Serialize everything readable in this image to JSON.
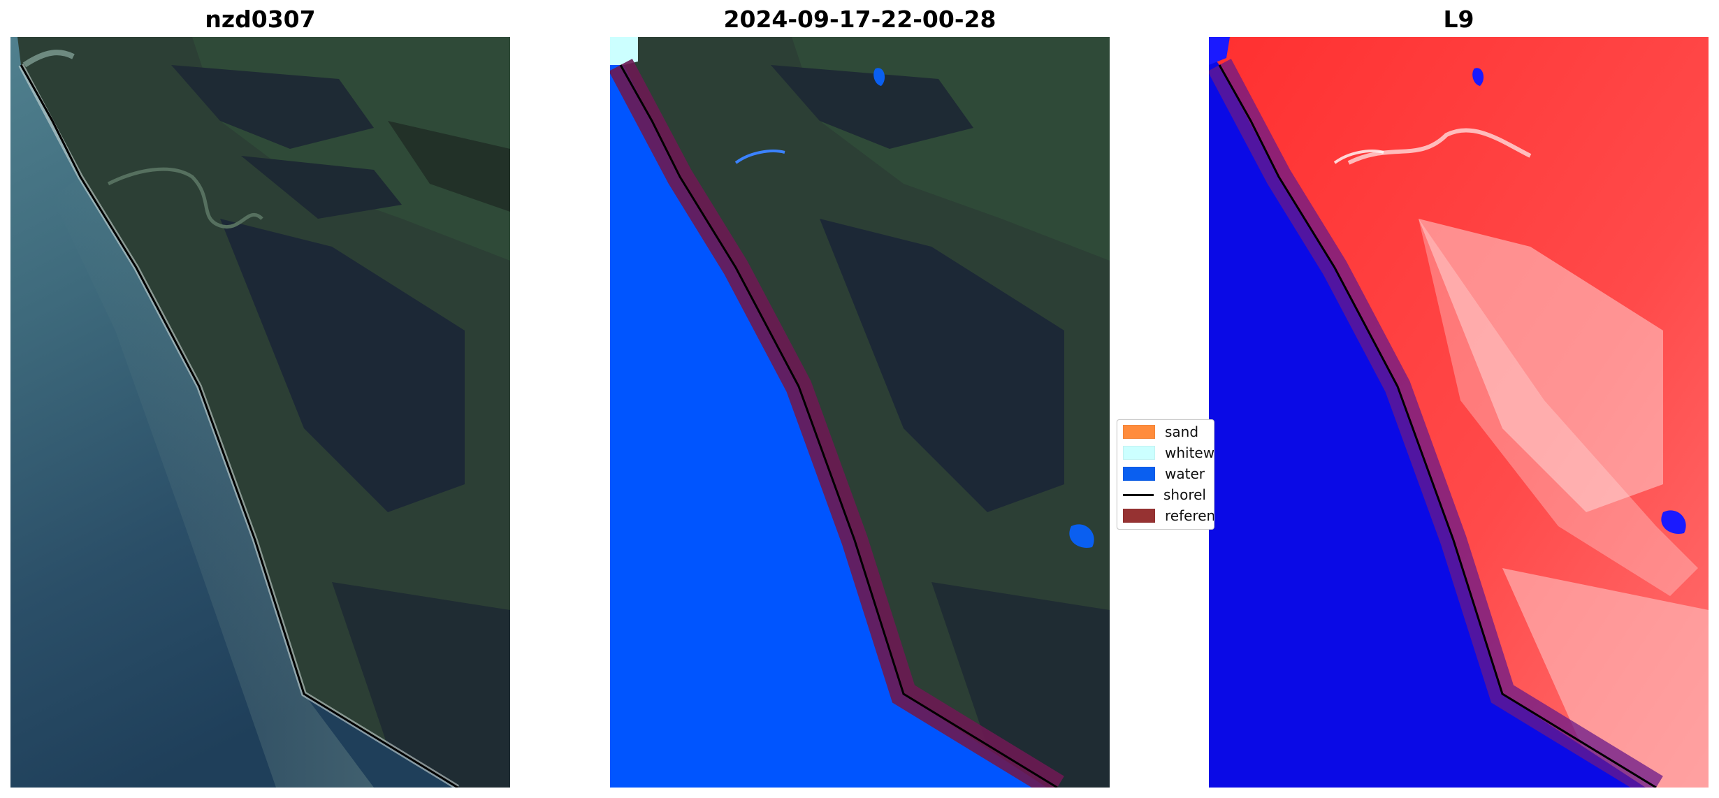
{
  "panels": [
    {
      "title": "nzd0307"
    },
    {
      "title": "2024-09-17-22-00-28"
    },
    {
      "title": "L9"
    }
  ],
  "legend": {
    "items": [
      {
        "label": "sand",
        "color": "#ff8c3c"
      },
      {
        "label": "whitew",
        "color": "#ccffff"
      },
      {
        "label": "water",
        "color": "#0a5ff0"
      },
      {
        "label": "shorel",
        "color": "#000000"
      },
      {
        "label": "referen",
        "color": "#963232"
      }
    ]
  },
  "colors": {
    "sea_rgb": "#2e5468",
    "land_rgb": "#2c3f35",
    "forest_rgb": "#1c2836",
    "water_class": "#0055ff",
    "buffer": "#6b1a52",
    "index_high": "#ff2a2a",
    "index_low": "#0a0ae6",
    "shoreline": "#000000"
  }
}
